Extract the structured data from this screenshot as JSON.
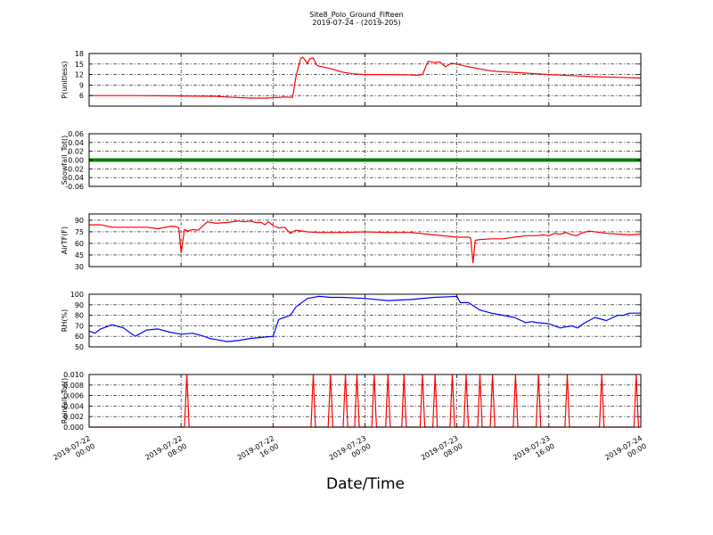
{
  "figure": {
    "title": "Site8_Polo_Ground_Fifteen",
    "subtitle": "2019-07-24 - (2019-205)",
    "xlabel": "Date/Time",
    "xticks": [
      {
        "t": 0,
        "label": [
          "2019-07-22",
          "00:00"
        ]
      },
      {
        "t": 8,
        "label": [
          "2019-07-22",
          "08:00"
        ]
      },
      {
        "t": 16,
        "label": [
          "2019-07-22",
          "16:00"
        ]
      },
      {
        "t": 24,
        "label": [
          "2019-07-23",
          "00:00"
        ]
      },
      {
        "t": 32,
        "label": [
          "2019-07-23",
          "08:00"
        ]
      },
      {
        "t": 40,
        "label": [
          "2019-07-23",
          "16:00"
        ]
      },
      {
        "t": 48,
        "label": [
          "2019-07-24",
          "00:00"
        ]
      }
    ]
  },
  "chart_data": [
    {
      "type": "line",
      "ylabel": "P(unitless)",
      "color": "#ff0000",
      "ylim": [
        3,
        18
      ],
      "yticks": [
        6,
        9,
        12,
        15,
        18
      ],
      "x": [
        0,
        4,
        8,
        11,
        12,
        14,
        15.5,
        17,
        17.7,
        18,
        18.4,
        18.6,
        19,
        19.2,
        19.5,
        19.8,
        20,
        21,
        22,
        23,
        24,
        26,
        28,
        28.5,
        29,
        29.5,
        30,
        30.5,
        30.8,
        31,
        31.5,
        32,
        33,
        35,
        38,
        40,
        42,
        44,
        46,
        48
      ],
      "y": [
        6,
        6,
        5.9,
        5.8,
        5.6,
        5.3,
        5.3,
        5.6,
        5.5,
        11.5,
        16.6,
        16.9,
        15.2,
        16.5,
        16.7,
        14.7,
        14.4,
        13.7,
        12.7,
        12.2,
        12,
        12,
        11.9,
        11.8,
        12,
        15.8,
        15.4,
        15.6,
        14.8,
        14.2,
        15.2,
        15,
        14.2,
        13,
        12.4,
        12,
        11.7,
        11.4,
        11.2,
        11.0
      ]
    },
    {
      "type": "line",
      "ylabel": "Snowfall_Tot()",
      "color": "#008000",
      "ylim": [
        -0.06,
        0.06
      ],
      "yticks": [
        -0.06,
        -0.04,
        -0.02,
        0.0,
        0.02,
        0.04,
        0.06
      ],
      "x": [
        0,
        48
      ],
      "y": [
        0,
        0
      ]
    },
    {
      "type": "line",
      "ylabel": "AirTF(F)",
      "color": "#ff0000",
      "ylim": [
        30,
        98
      ],
      "yticks": [
        30,
        45,
        60,
        75,
        90
      ],
      "x": [
        0,
        1,
        2,
        3,
        4,
        5,
        6,
        7,
        7.5,
        7.8,
        8,
        8.3,
        8.6,
        9,
        9.5,
        10,
        10.3,
        11,
        12,
        13,
        13.5,
        14,
        14.5,
        15,
        15.3,
        15.6,
        16,
        16.5,
        17,
        17.5,
        18,
        19,
        20,
        22,
        24,
        26,
        28,
        30,
        32,
        33,
        33.2,
        33.4,
        33.6,
        34,
        35,
        36,
        37,
        38,
        38.5,
        39,
        39.5,
        40,
        40.5,
        41,
        41.5,
        42,
        42.4,
        42.8,
        43.5,
        45,
        47,
        48
      ],
      "y": [
        84,
        84,
        81,
        81,
        81,
        81,
        79,
        82,
        82,
        80,
        48,
        78,
        76,
        78,
        77,
        84,
        88,
        86,
        87,
        89,
        88,
        89,
        87,
        87,
        84,
        88,
        83,
        80,
        81,
        73,
        77,
        75,
        74,
        74,
        75,
        74,
        74,
        71,
        68,
        68,
        67,
        35,
        64,
        65,
        66,
        66,
        68,
        70,
        70,
        70,
        71,
        70,
        73,
        72,
        74,
        71,
        70,
        73,
        76,
        73,
        71,
        72
      ]
    },
    {
      "type": "line",
      "ylabel": "RH(%)",
      "color": "#0000ff",
      "ylim": [
        50,
        100
      ],
      "yticks": [
        50,
        60,
        70,
        80,
        90,
        100
      ],
      "x": [
        0,
        0.5,
        1,
        2,
        3,
        4,
        5,
        6,
        7,
        8,
        9,
        10,
        10.5,
        11,
        12,
        13,
        14,
        15,
        16,
        16.5,
        17,
        17.5,
        18,
        19,
        20,
        21,
        22,
        24,
        26,
        28,
        30,
        32,
        32.3,
        33,
        34,
        35,
        36,
        37,
        38,
        38.5,
        39,
        40,
        41,
        42,
        42.5,
        43,
        44,
        45,
        46,
        46.5,
        47,
        48
      ],
      "y": [
        65,
        63,
        67,
        71,
        68,
        60,
        66,
        67,
        64,
        62,
        63,
        60,
        58,
        57,
        55,
        56,
        58,
        59,
        60,
        76,
        78,
        80,
        88,
        96,
        98,
        97,
        97,
        96,
        94,
        95,
        97,
        98,
        92,
        92,
        85,
        82,
        80,
        78,
        73,
        74,
        73,
        72,
        68,
        70,
        68,
        72,
        78,
        75,
        80,
        80,
        82,
        82
      ]
    },
    {
      "type": "line",
      "ylabel": "Rainfall_Tot()",
      "color": "#ff0000",
      "ylim": [
        0,
        0.01
      ],
      "yticks": [
        0.0,
        0.002,
        0.004,
        0.006,
        0.008,
        0.01
      ],
      "x": [
        0,
        8.3,
        8.5,
        8.7,
        19.3,
        19.5,
        19.7,
        20.8,
        21,
        21.2,
        22.1,
        22.3,
        22.5,
        23.1,
        23.3,
        23.5,
        24.6,
        24.8,
        25,
        25.8,
        26,
        26.2,
        27.2,
        27.4,
        27.6,
        28.8,
        29,
        29.2,
        29.9,
        30.1,
        30.3,
        31.4,
        31.6,
        31.8,
        32.6,
        32.8,
        33,
        33.8,
        34,
        34.2,
        34.9,
        35.1,
        35.3,
        36.9,
        37.1,
        37.3,
        38.9,
        39.1,
        39.3,
        41.4,
        41.6,
        41.8,
        44.4,
        44.6,
        44.8,
        47.4,
        47.6,
        47.8,
        48
      ],
      "y": [
        0,
        0,
        0.01,
        0,
        0,
        0.01,
        0,
        0,
        0.01,
        0,
        0,
        0.01,
        0,
        0,
        0.01,
        0,
        0,
        0.01,
        0,
        0,
        0.01,
        0,
        0,
        0.01,
        0,
        0,
        0.01,
        0,
        0,
        0.01,
        0,
        0,
        0.01,
        0,
        0,
        0.01,
        0,
        0,
        0.01,
        0,
        0,
        0.01,
        0,
        0,
        0.01,
        0,
        0,
        0.01,
        0,
        0,
        0.01,
        0,
        0,
        0.01,
        0,
        0,
        0.01,
        0,
        0
      ]
    }
  ]
}
